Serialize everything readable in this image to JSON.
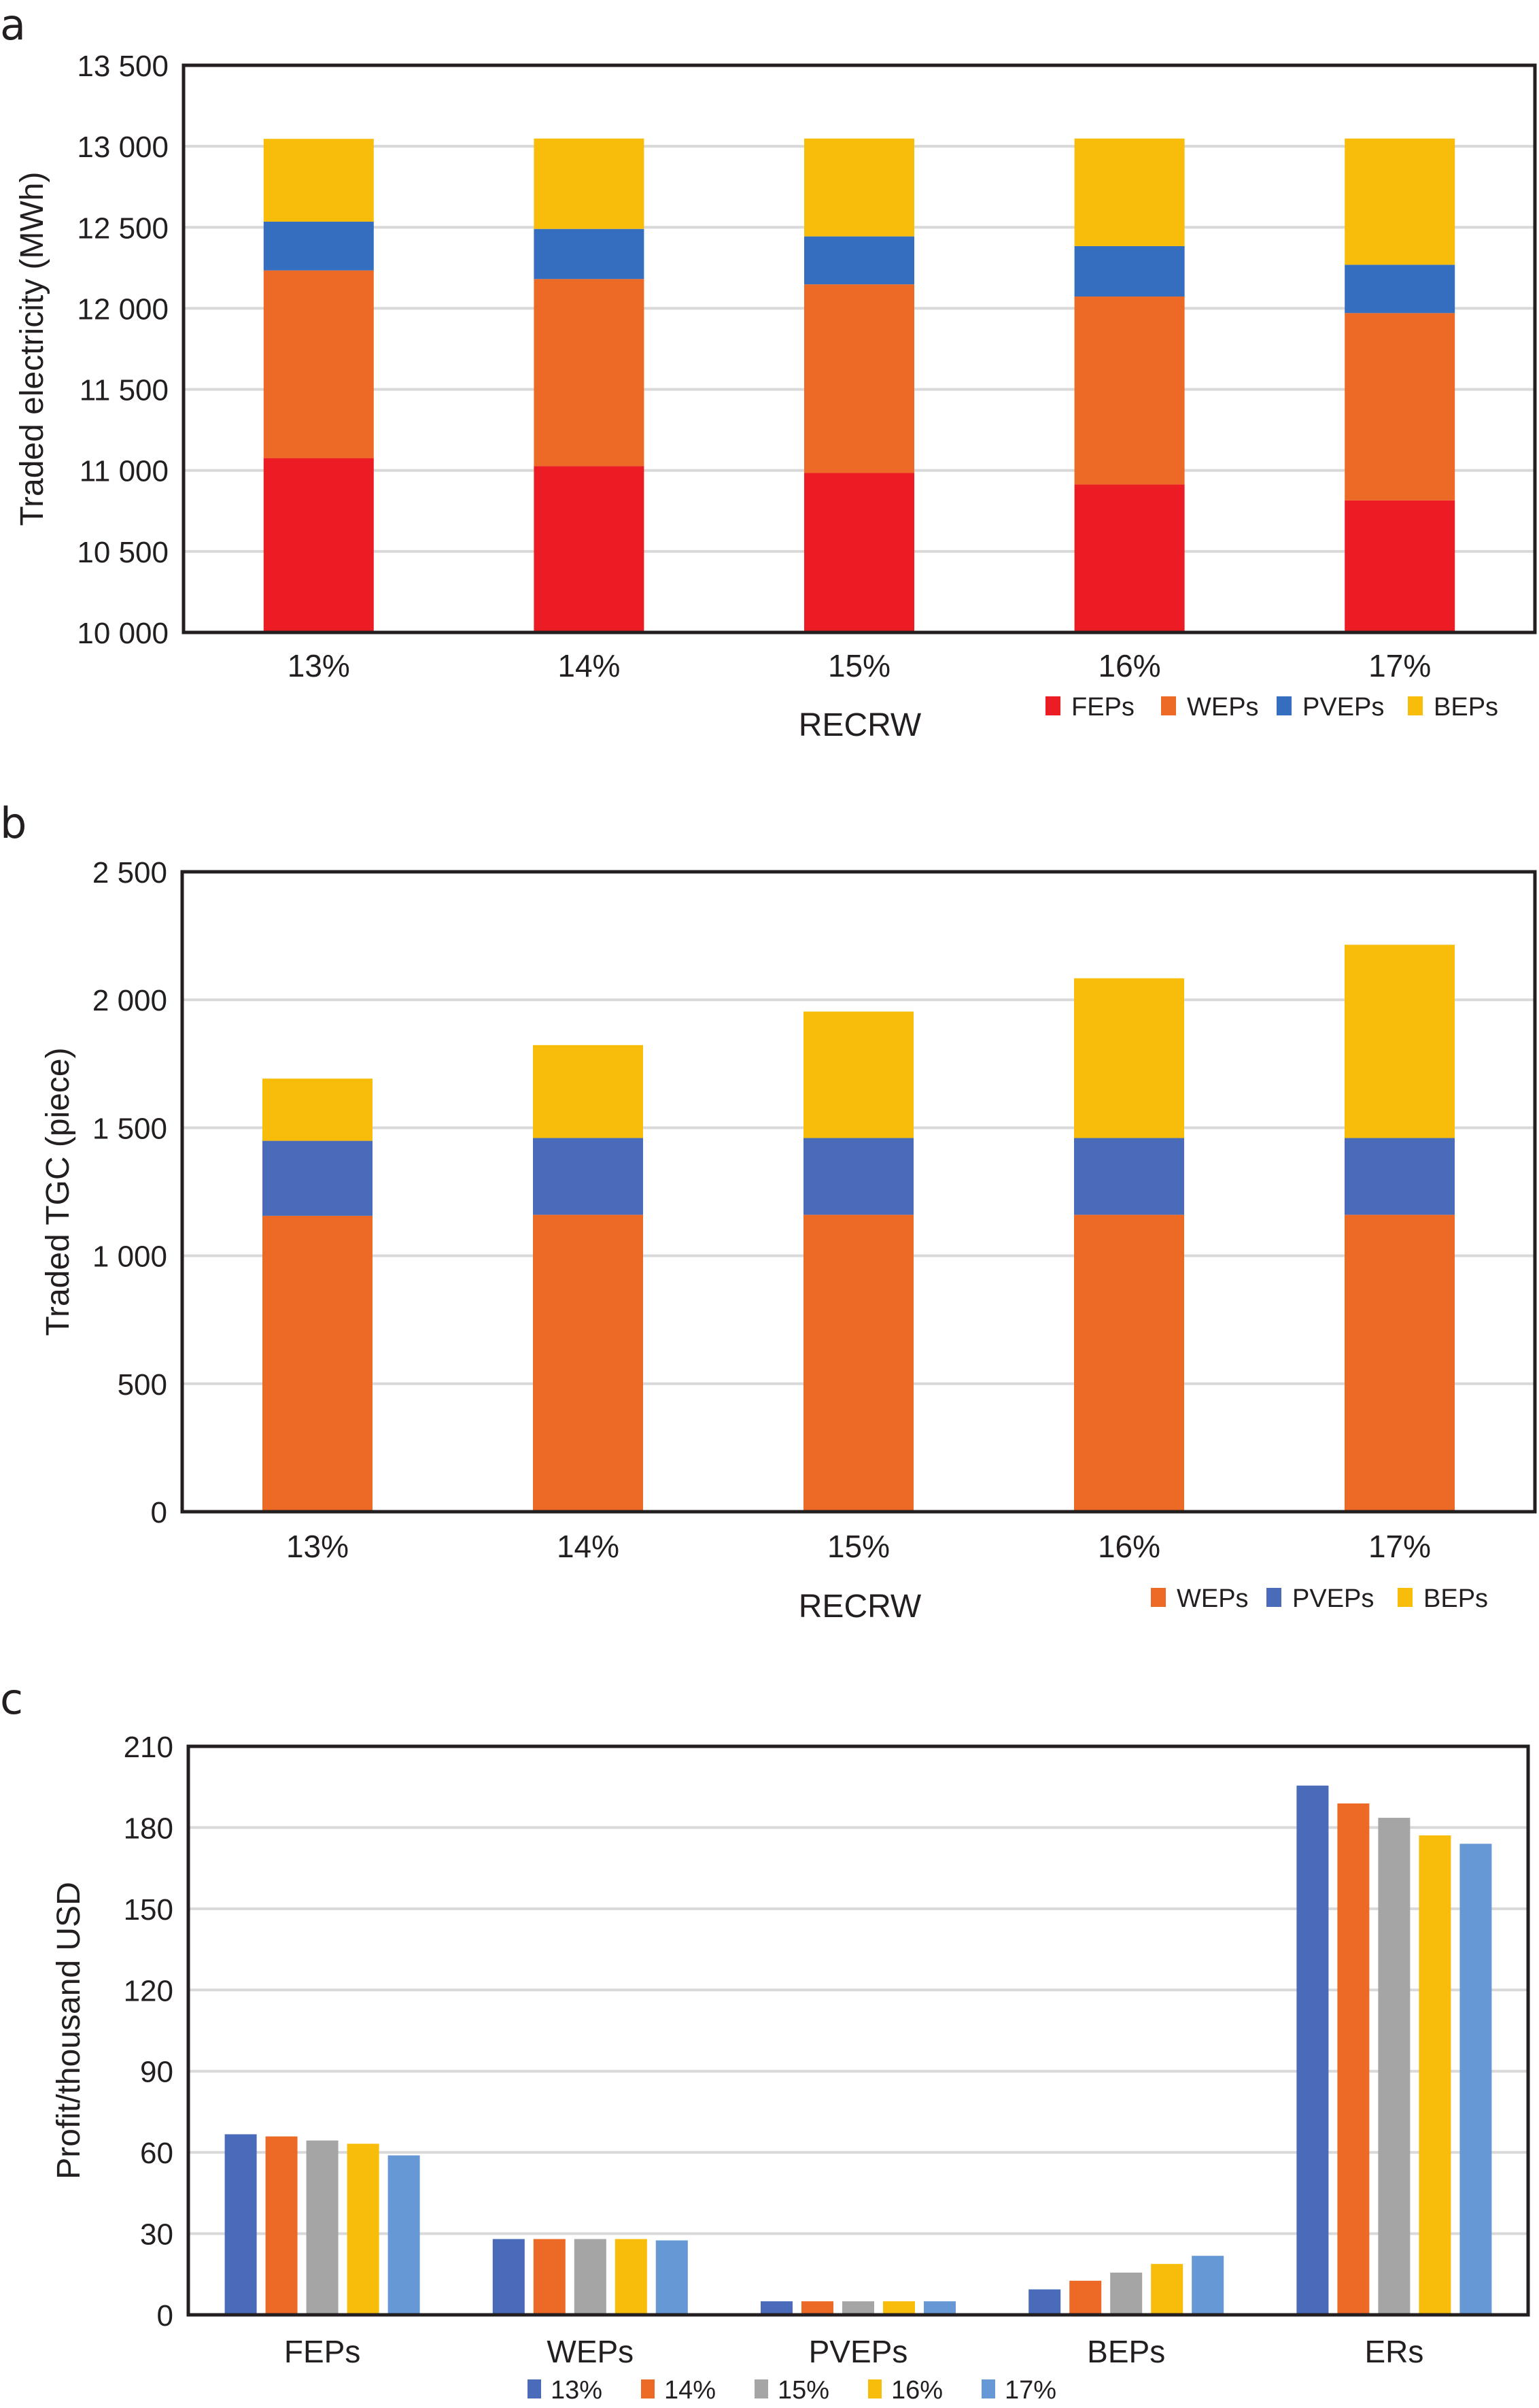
{
  "figure": {
    "panels": [
      "a",
      "b",
      "c"
    ]
  },
  "chart_data": [
    {
      "id": "a",
      "type": "bar",
      "stacked": true,
      "title": "",
      "panel_label": "a",
      "xlabel": "RECRW",
      "ylabel": "Traded electricity (MWh)",
      "categories": [
        "13%",
        "14%",
        "15%",
        "16%",
        "17%"
      ],
      "ylim": [
        10000,
        13500
      ],
      "yticks": [
        10000,
        10500,
        11000,
        11500,
        12000,
        12500,
        13000,
        13500
      ],
      "ytick_labels": [
        "10 000",
        "10 500",
        "11 000",
        "11 500",
        "12 000",
        "12 500",
        "13 000",
        "13 500"
      ],
      "grid": true,
      "legend_position": "bottom-right",
      "series": [
        {
          "name": "FEPs",
          "color": "#ec1c24",
          "values": [
            11076,
            11027,
            10984,
            10913,
            10815
          ]
        },
        {
          "name": "WEPs",
          "color": "#ec6a25",
          "values": [
            1158,
            1154,
            1164,
            1160,
            1156
          ]
        },
        {
          "name": "PVEPs",
          "color": "#356dbf",
          "values": [
            301,
            309,
            296,
            311,
            298
          ]
        },
        {
          "name": "BEPs",
          "color": "#f8bd0b",
          "values": [
            511,
            558,
            604,
            664,
            779
          ]
        }
      ]
    },
    {
      "id": "b",
      "type": "bar",
      "stacked": true,
      "title": "",
      "panel_label": "b",
      "xlabel": "RECRW",
      "ylabel": "Traded TGC (piece)",
      "categories": [
        "13%",
        "14%",
        "15%",
        "16%",
        "17%"
      ],
      "ylim": [
        0,
        2500
      ],
      "yticks": [
        0,
        500,
        1000,
        1500,
        2000,
        2500
      ],
      "ytick_labels": [
        "0",
        "500",
        "1 000",
        "1 500",
        "2 000",
        "2 500"
      ],
      "grid": true,
      "legend_position": "bottom-right",
      "series": [
        {
          "name": "WEPs",
          "color": "#ec6a25",
          "values": [
            1156,
            1160,
            1160,
            1160,
            1160
          ]
        },
        {
          "name": "PVEPs",
          "color": "#4a6aba",
          "values": [
            293,
            300,
            300,
            300,
            300
          ]
        },
        {
          "name": "BEPs",
          "color": "#f8bd0b",
          "values": [
            243,
            363,
            494,
            624,
            755
          ]
        }
      ]
    },
    {
      "id": "c",
      "type": "bar",
      "stacked": false,
      "title": "",
      "panel_label": "c",
      "xlabel": "",
      "ylabel": "Profit/thousand USD",
      "categories": [
        "FEPs",
        "WEPs",
        "PVEPs",
        "BEPs",
        "ERs"
      ],
      "ylim": [
        0,
        210
      ],
      "yticks": [
        0,
        30,
        60,
        90,
        120,
        150,
        180,
        210
      ],
      "ytick_labels": [
        "0",
        "30",
        "60",
        "90",
        "120",
        "150",
        "180",
        "210"
      ],
      "grid": true,
      "legend_position": "bottom-center",
      "series": [
        {
          "name": "13%",
          "color": "#4a6aba",
          "values": [
            66.7,
            28.0,
            5.0,
            9.4,
            195.5
          ]
        },
        {
          "name": "14%",
          "color": "#ec6a25",
          "values": [
            65.9,
            28.0,
            5.0,
            12.6,
            188.9
          ]
        },
        {
          "name": "15%",
          "color": "#a5a5a5",
          "values": [
            64.4,
            28.0,
            5.0,
            15.6,
            183.6
          ]
        },
        {
          "name": "16%",
          "color": "#f8bd0b",
          "values": [
            63.2,
            28.0,
            5.0,
            18.8,
            177.1
          ]
        },
        {
          "name": "17%",
          "color": "#6598d5",
          "values": [
            58.9,
            27.5,
            5.0,
            21.8,
            174.0
          ]
        }
      ]
    }
  ]
}
